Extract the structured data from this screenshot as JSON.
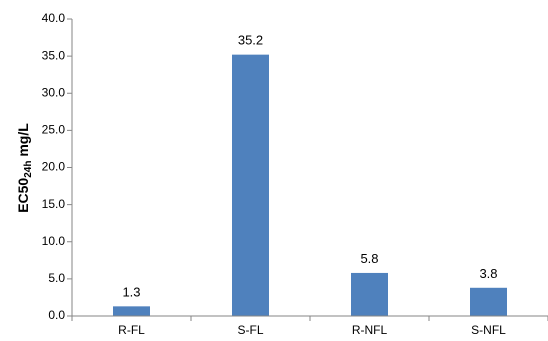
{
  "chart_data": {
    "type": "bar",
    "categories": [
      "R-FL",
      "S-FL",
      "R-NFL",
      "S-NFL"
    ],
    "values": [
      1.3,
      35.2,
      5.8,
      3.8
    ],
    "data_labels": [
      "1.3",
      "35.2",
      "5.8",
      "3.8"
    ],
    "title": "",
    "xlabel": "",
    "ylabel": {
      "main": "EC50",
      "subscript": "24h",
      "unit": " mg/L"
    },
    "ylim": [
      0,
      40
    ],
    "yticks": [
      "0.0",
      "5.0",
      "10.0",
      "15.0",
      "20.0",
      "25.0",
      "30.0",
      "35.0",
      "40.0"
    ],
    "ytick_step": 5,
    "grid": false,
    "legend": "none",
    "bar_color": "#4f81bd"
  }
}
